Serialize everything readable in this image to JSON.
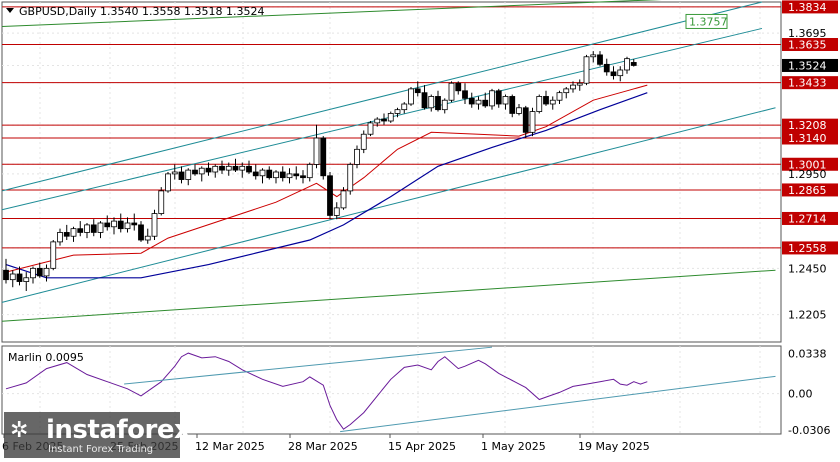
{
  "header": {
    "symbol_line": "GBPUSD,Daily  1.3540 1.3558 1.3518 1.3524",
    "indicator_label": "Marlin 0.0095"
  },
  "chart_data": [
    {
      "type": "candlestick",
      "symbol": "GBPUSD",
      "timeframe": "Daily",
      "ohlc_last": {
        "open": 1.354,
        "high": 1.3558,
        "low": 1.3518,
        "close": 1.3524
      },
      "ylim": [
        1.206,
        1.386
      ],
      "y_ticks": [
        "1.3834",
        "1.3695",
        "1.3635",
        "1.3524",
        "1.3433",
        "1.3208",
        "1.3140",
        "1.3001",
        "1.2950",
        "1.2865",
        "1.2714",
        "1.2558",
        "1.2450",
        "1.2205"
      ],
      "level_labels": [
        "1.3834",
        "1.3635",
        "1.3433",
        "1.3208",
        "1.3140",
        "1.3001",
        "1.2865",
        "1.2714",
        "1.2558"
      ],
      "price_label": "1.3524",
      "target_label": "1.3757",
      "x_labels": [
        "6 Feb 2025",
        "25 Feb 2025",
        "12 Mar 2025",
        "28 Mar 2025",
        "15 Apr 2025",
        "1 May 2025",
        "19 May 2025"
      ],
      "candles": [
        [
          1.244,
          1.25,
          1.237,
          1.239
        ],
        [
          1.239,
          1.244,
          1.235,
          1.242
        ],
        [
          1.242,
          1.246,
          1.236,
          1.238
        ],
        [
          1.238,
          1.243,
          1.233,
          1.24
        ],
        [
          1.24,
          1.246,
          1.237,
          1.245
        ],
        [
          1.245,
          1.248,
          1.24,
          1.241
        ],
        [
          1.241,
          1.247,
          1.238,
          1.245
        ],
        [
          1.245,
          1.26,
          1.244,
          1.259
        ],
        [
          1.259,
          1.266,
          1.257,
          1.264
        ],
        [
          1.264,
          1.268,
          1.26,
          1.262
        ],
        [
          1.262,
          1.267,
          1.259,
          1.266
        ],
        [
          1.266,
          1.27,
          1.262,
          1.264
        ],
        [
          1.264,
          1.269,
          1.261,
          1.268
        ],
        [
          1.268,
          1.271,
          1.262,
          1.264
        ],
        [
          1.264,
          1.27,
          1.261,
          1.269
        ],
        [
          1.269,
          1.273,
          1.265,
          1.267
        ],
        [
          1.267,
          1.272,
          1.263,
          1.27
        ],
        [
          1.27,
          1.274,
          1.264,
          1.266
        ],
        [
          1.266,
          1.272,
          1.264,
          1.269
        ],
        [
          1.269,
          1.274,
          1.265,
          1.268
        ],
        [
          1.268,
          1.27,
          1.259,
          1.26
        ],
        [
          1.26,
          1.266,
          1.258,
          1.262
        ],
        [
          1.262,
          1.276,
          1.26,
          1.274
        ],
        [
          1.274,
          1.288,
          1.273,
          1.286
        ],
        [
          1.286,
          1.296,
          1.285,
          1.295
        ],
        [
          1.295,
          1.3,
          1.292,
          1.296
        ],
        [
          1.296,
          1.299,
          1.29,
          1.292
        ],
        [
          1.292,
          1.298,
          1.289,
          1.297
        ],
        [
          1.297,
          1.3,
          1.294,
          1.295
        ],
        [
          1.295,
          1.299,
          1.291,
          1.298
        ],
        [
          1.298,
          1.301,
          1.294,
          1.296
        ],
        [
          1.296,
          1.3,
          1.293,
          1.299
        ],
        [
          1.299,
          1.302,
          1.295,
          1.297
        ],
        [
          1.297,
          1.301,
          1.294,
          1.299
        ],
        [
          1.299,
          1.303,
          1.296,
          1.297
        ],
        [
          1.297,
          1.301,
          1.293,
          1.299
        ],
        [
          1.299,
          1.302,
          1.295,
          1.296
        ],
        [
          1.296,
          1.3,
          1.292,
          1.294
        ],
        [
          1.294,
          1.298,
          1.29,
          1.297
        ],
        [
          1.297,
          1.299,
          1.292,
          1.293
        ],
        [
          1.293,
          1.297,
          1.29,
          1.296
        ],
        [
          1.296,
          1.299,
          1.291,
          1.293
        ],
        [
          1.293,
          1.298,
          1.29,
          1.295
        ],
        [
          1.295,
          1.299,
          1.292,
          1.294
        ],
        [
          1.294,
          1.297,
          1.29,
          1.293
        ],
        [
          1.293,
          1.301,
          1.291,
          1.3
        ],
        [
          1.3,
          1.321,
          1.298,
          1.314
        ],
        [
          1.314,
          1.315,
          1.292,
          1.294
        ],
        [
          1.294,
          1.296,
          1.271,
          1.273
        ],
        [
          1.273,
          1.28,
          1.271,
          1.277
        ],
        [
          1.277,
          1.288,
          1.276,
          1.286
        ],
        [
          1.286,
          1.301,
          1.284,
          1.3
        ],
        [
          1.3,
          1.31,
          1.298,
          1.308
        ],
        [
          1.308,
          1.318,
          1.306,
          1.316
        ],
        [
          1.316,
          1.323,
          1.315,
          1.322
        ],
        [
          1.322,
          1.325,
          1.32,
          1.324
        ],
        [
          1.324,
          1.327,
          1.321,
          1.323
        ],
        [
          1.323,
          1.328,
          1.322,
          1.327
        ],
        [
          1.327,
          1.33,
          1.325,
          1.329
        ],
        [
          1.329,
          1.333,
          1.327,
          1.332
        ],
        [
          1.332,
          1.341,
          1.331,
          1.34
        ],
        [
          1.34,
          1.344,
          1.336,
          1.338
        ],
        [
          1.338,
          1.342,
          1.329,
          1.33
        ],
        [
          1.33,
          1.337,
          1.328,
          1.336
        ],
        [
          1.336,
          1.339,
          1.328,
          1.329
        ],
        [
          1.329,
          1.335,
          1.327,
          1.334
        ],
        [
          1.334,
          1.344,
          1.333,
          1.343
        ],
        [
          1.343,
          1.344,
          1.337,
          1.339
        ],
        [
          1.339,
          1.343,
          1.332,
          1.335
        ],
        [
          1.335,
          1.338,
          1.33,
          1.332
        ],
        [
          1.332,
          1.336,
          1.329,
          1.334
        ],
        [
          1.334,
          1.338,
          1.33,
          1.331
        ],
        [
          1.331,
          1.34,
          1.329,
          1.339
        ],
        [
          1.339,
          1.34,
          1.33,
          1.332
        ],
        [
          1.332,
          1.337,
          1.329,
          1.336
        ],
        [
          1.336,
          1.337,
          1.325,
          1.327
        ],
        [
          1.327,
          1.332,
          1.326,
          1.33
        ],
        [
          1.33,
          1.331,
          1.314,
          1.317
        ],
        [
          1.317,
          1.33,
          1.315,
          1.328
        ],
        [
          1.328,
          1.337,
          1.327,
          1.336
        ],
        [
          1.336,
          1.339,
          1.331,
          1.332
        ],
        [
          1.332,
          1.336,
          1.329,
          1.334
        ],
        [
          1.334,
          1.339,
          1.332,
          1.338
        ],
        [
          1.338,
          1.341,
          1.335,
          1.34
        ],
        [
          1.34,
          1.344,
          1.338,
          1.342
        ],
        [
          1.342,
          1.345,
          1.339,
          1.343
        ],
        [
          1.343,
          1.358,
          1.342,
          1.357
        ],
        [
          1.357,
          1.36,
          1.354,
          1.358
        ],
        [
          1.358,
          1.36,
          1.352,
          1.353
        ],
        [
          1.353,
          1.356,
          1.347,
          1.349
        ],
        [
          1.349,
          1.352,
          1.345,
          1.347
        ],
        [
          1.347,
          1.352,
          1.344,
          1.35
        ],
        [
          1.35,
          1.357,
          1.348,
          1.356
        ],
        [
          1.354,
          1.3558,
          1.3518,
          1.3524
        ]
      ],
      "ma_red": [
        [
          0,
          1.243
        ],
        [
          10,
          1.252
        ],
        [
          20,
          1.253
        ],
        [
          24,
          1.261
        ],
        [
          40,
          1.28
        ],
        [
          46,
          1.29
        ],
        [
          49,
          1.283
        ],
        [
          53,
          1.293
        ],
        [
          58,
          1.308
        ],
        [
          63,
          1.317
        ],
        [
          70,
          1.316
        ],
        [
          76,
          1.315
        ],
        [
          80,
          1.32
        ],
        [
          87,
          1.334
        ],
        [
          92,
          1.339
        ],
        [
          95,
          1.342
        ]
      ],
      "ma_blue": [
        [
          0,
          1.247
        ],
        [
          6,
          1.24
        ],
        [
          20,
          1.24
        ],
        [
          30,
          1.247
        ],
        [
          45,
          1.26
        ],
        [
          50,
          1.268
        ],
        [
          57,
          1.283
        ],
        [
          64,
          1.299
        ],
        [
          72,
          1.309
        ],
        [
          80,
          1.318
        ],
        [
          88,
          1.329
        ],
        [
          95,
          1.338
        ]
      ],
      "indicator": {
        "name": "Marlin",
        "last_value": 0.0095,
        "ylim": [
          -0.034,
          0.04
        ],
        "y_ticks": [
          "0.0338",
          "0.00",
          "-0.0306"
        ],
        "values": [
          [
            0,
            0.004
          ],
          [
            3,
            0.009
          ],
          [
            6,
            0.021
          ],
          [
            9,
            0.026
          ],
          [
            12,
            0.016
          ],
          [
            15,
            0.01
          ],
          [
            18,
            0.004
          ],
          [
            20,
            -0.002
          ],
          [
            23,
            0.01
          ],
          [
            25,
            0.023
          ],
          [
            26,
            0.031
          ],
          [
            27,
            0.034
          ],
          [
            29,
            0.03
          ],
          [
            31,
            0.031
          ],
          [
            33,
            0.027
          ],
          [
            35,
            0.02
          ],
          [
            38,
            0.012
          ],
          [
            41,
            0.006
          ],
          [
            44,
            0.01
          ],
          [
            45,
            0.014
          ],
          [
            47,
            0.007
          ],
          [
            48,
            -0.01
          ],
          [
            49,
            -0.022
          ],
          [
            50,
            -0.03
          ],
          [
            51,
            -0.026
          ],
          [
            53,
            -0.016
          ],
          [
            55,
            -0.002
          ],
          [
            57,
            0.012
          ],
          [
            59,
            0.022
          ],
          [
            61,
            0.024
          ],
          [
            63,
            0.02
          ],
          [
            64,
            0.027
          ],
          [
            65,
            0.031
          ],
          [
            67,
            0.021
          ],
          [
            68,
            0.023
          ],
          [
            70,
            0.028
          ],
          [
            71,
            0.025
          ],
          [
            73,
            0.017
          ],
          [
            75,
            0.011
          ],
          [
            77,
            0.005
          ],
          [
            79,
            -0.005
          ],
          [
            80,
            -0.003
          ],
          [
            82,
            0.001
          ],
          [
            84,
            0.006
          ],
          [
            86,
            0.008
          ],
          [
            88,
            0.01
          ],
          [
            90,
            0.012
          ],
          [
            91,
            0.008
          ],
          [
            92,
            0.007
          ],
          [
            93,
            0.01
          ],
          [
            94,
            0.008
          ],
          [
            95,
            0.01
          ]
        ]
      }
    }
  ],
  "colors": {
    "background": "#ffffff",
    "grid": "#e4e4e4",
    "candle": "#000000",
    "resistance": "#c00000",
    "channel": "#1e8c96",
    "long_trend": "#2e8b2e",
    "ma_red": "#cc0000",
    "ma_blue": "#000099",
    "indicator": "#6a1b9a",
    "indicator_trend": "#4f9ab0",
    "price_box": "#000000",
    "target_box": "#3a9a3a"
  },
  "branding": {
    "logo_icon": "instaforex-logo-icon",
    "name": "instaforex",
    "tagline": "Instant Forex Trading"
  }
}
